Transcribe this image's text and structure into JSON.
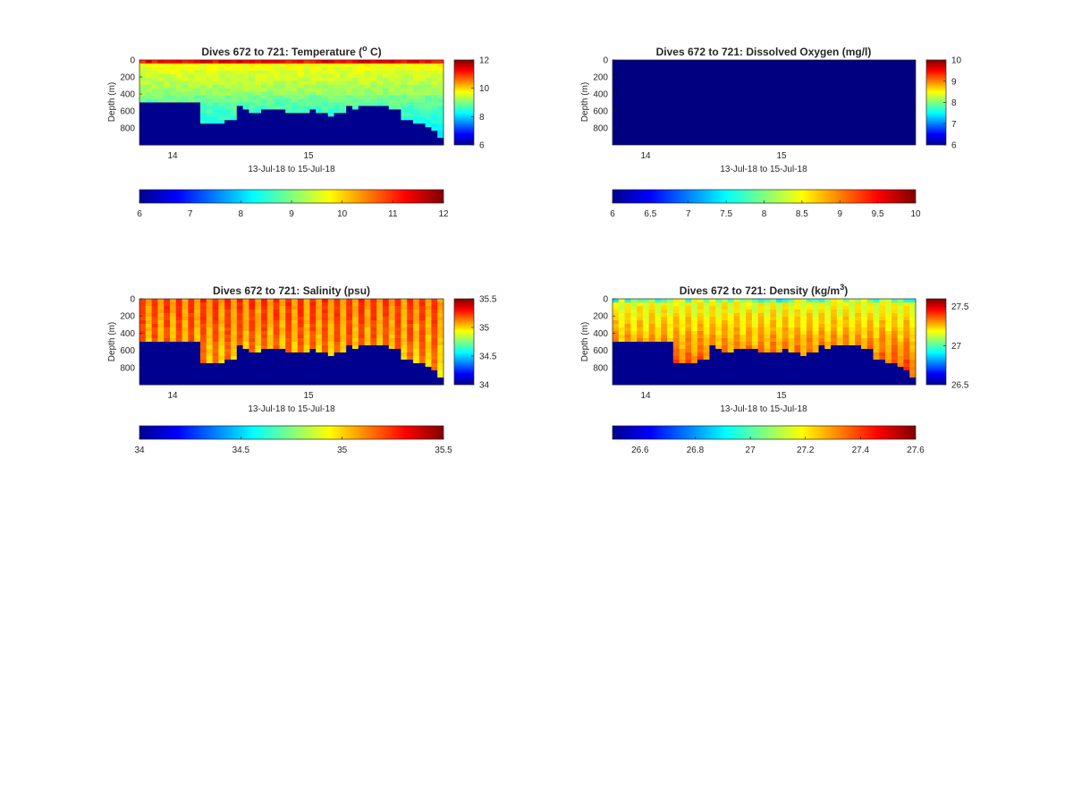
{
  "chart_data": [
    {
      "type": "heatmap",
      "variable": "temperature",
      "title": "Dives 672 to 721: Temperature (",
      "title_sup": "o",
      "title_end": " C)",
      "ylabel": "Depth (m)",
      "xlabel": "13-Jul-18 to 15-Jul-18",
      "x_ticks": [
        "14",
        "15"
      ],
      "y_ticks": [
        "0",
        "200",
        "400",
        "600",
        "800"
      ],
      "ylim": [
        0,
        1000
      ],
      "y_reversed": true,
      "colorbar_range": [
        6,
        12
      ],
      "colorbar_ticks": [
        "12",
        "10",
        "8",
        "6"
      ],
      "hbar_ticks": [
        "6",
        "7",
        "8",
        "9",
        "10",
        "11",
        "12"
      ],
      "colormap": "jet",
      "profile_count": 50,
      "bottom_depth_m": [
        510,
        510,
        510,
        510,
        510,
        510,
        510,
        510,
        510,
        510,
        760,
        770,
        740,
        730,
        720,
        710,
        560,
        600,
        610,
        630,
        590,
        600,
        570,
        600,
        610,
        620,
        620,
        630,
        600,
        630,
        640,
        650,
        640,
        640,
        550,
        570,
        560,
        560,
        550,
        550,
        550,
        570,
        600,
        700,
        720,
        730,
        740,
        800,
        850,
        900
      ]
    },
    {
      "type": "heatmap",
      "variable": "oxygen",
      "title": "Dives 672 to 721: Dissolved Oxygen (mg/l)",
      "ylabel": "Depth (m)",
      "xlabel": "13-Jul-18 to 15-Jul-18",
      "x_ticks": [
        "14",
        "15"
      ],
      "y_ticks": [
        "0",
        "200",
        "400",
        "600",
        "800"
      ],
      "ylim": [
        0,
        1000
      ],
      "y_reversed": true,
      "colorbar_range": [
        6,
        10
      ],
      "colorbar_ticks": [
        "10",
        "9",
        "8",
        "7",
        "6"
      ],
      "hbar_ticks": [
        "6",
        "6.5",
        "7",
        "7.5",
        "8",
        "8.5",
        "9",
        "9.5",
        "10"
      ],
      "colormap": "jet",
      "uniform_value": 6
    },
    {
      "type": "heatmap",
      "variable": "salinity",
      "title": "Dives 672 to 721: Salinity (psu)",
      "ylabel": "Depth (m)",
      "xlabel": "13-Jul-18 to 15-Jul-18",
      "x_ticks": [
        "14",
        "15"
      ],
      "y_ticks": [
        "0",
        "200",
        "400",
        "600",
        "800"
      ],
      "ylim": [
        0,
        1000
      ],
      "y_reversed": true,
      "colorbar_range": [
        34,
        35.5
      ],
      "colorbar_ticks": [
        "35.5",
        "35",
        "34.5",
        "34"
      ],
      "hbar_ticks": [
        "34",
        "34.5",
        "35",
        "35.5"
      ],
      "colormap": "jet",
      "profile_count": 50,
      "bottom_depth_m": [
        510,
        510,
        510,
        510,
        510,
        510,
        510,
        510,
        510,
        510,
        760,
        770,
        740,
        730,
        720,
        710,
        560,
        600,
        610,
        630,
        590,
        600,
        570,
        600,
        610,
        620,
        620,
        630,
        600,
        630,
        640,
        650,
        640,
        640,
        550,
        570,
        560,
        560,
        550,
        550,
        550,
        570,
        600,
        700,
        720,
        730,
        740,
        800,
        850,
        900
      ]
    },
    {
      "type": "heatmap",
      "variable": "density",
      "title": "Dives 672 to 721: Density (kg/m",
      "title_sup": "3",
      "title_end": ")",
      "ylabel": "Depth (m)",
      "xlabel": "13-Jul-18 to 15-Jul-18",
      "x_ticks": [
        "14",
        "15"
      ],
      "y_ticks": [
        "0",
        "200",
        "400",
        "600",
        "800"
      ],
      "ylim": [
        0,
        1000
      ],
      "y_reversed": true,
      "colorbar_range": [
        26.5,
        27.6
      ],
      "colorbar_ticks": [
        "27.5",
        "27",
        "26.5"
      ],
      "hbar_ticks": [
        "26.6",
        "26.8",
        "27",
        "27.2",
        "27.4",
        "27.6"
      ],
      "colormap": "jet",
      "profile_count": 50,
      "bottom_depth_m": [
        510,
        510,
        510,
        510,
        510,
        510,
        510,
        510,
        510,
        510,
        760,
        770,
        740,
        730,
        720,
        710,
        560,
        600,
        610,
        630,
        590,
        600,
        570,
        600,
        610,
        620,
        620,
        630,
        600,
        630,
        640,
        650,
        640,
        640,
        550,
        570,
        560,
        560,
        550,
        550,
        550,
        570,
        600,
        700,
        720,
        730,
        740,
        800,
        850,
        900
      ]
    }
  ]
}
